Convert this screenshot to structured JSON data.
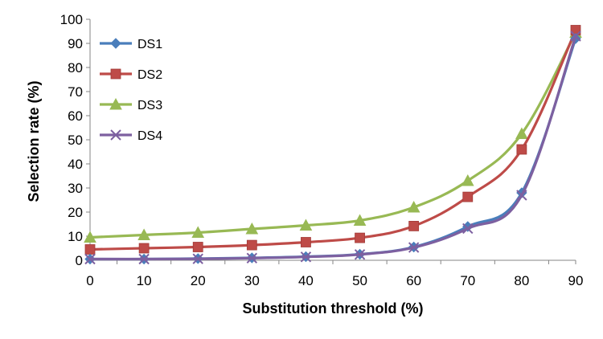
{
  "chart_data": {
    "type": "line",
    "title": "",
    "xlabel": "Substitution threshold (%)",
    "ylabel": "Selection rate (%)",
    "x": [
      0,
      10,
      20,
      30,
      40,
      50,
      60,
      70,
      80,
      90
    ],
    "xlim": [
      0,
      90
    ],
    "ylim": [
      0,
      100
    ],
    "x_ticks": [
      0,
      10,
      20,
      30,
      40,
      50,
      60,
      70,
      80,
      90
    ],
    "y_ticks": [
      0,
      10,
      20,
      30,
      40,
      50,
      60,
      70,
      80,
      90,
      100
    ],
    "grid": false,
    "legend_position": "top-left",
    "series": [
      {
        "name": "DS1",
        "color": "#4a7ebb",
        "marker": "diamond",
        "values": [
          0.5,
          0.5,
          0.7,
          1.0,
          1.5,
          2.5,
          5.5,
          14,
          28,
          92
        ]
      },
      {
        "name": "DS2",
        "color": "#be4b48",
        "marker": "square",
        "values": [
          4.5,
          5.0,
          5.5,
          6.3,
          7.5,
          9.3,
          14.2,
          26.3,
          46,
          95.5
        ]
      },
      {
        "name": "DS3",
        "color": "#98b954",
        "marker": "triangle",
        "values": [
          9.5,
          10.5,
          11.5,
          13,
          14.5,
          16.5,
          22,
          33,
          52.5,
          94.5
        ]
      },
      {
        "name": "DS4",
        "color": "#7d60a0",
        "marker": "x",
        "values": [
          0.5,
          0.5,
          0.6,
          0.9,
          1.4,
          2.4,
          5.3,
          13.2,
          27,
          93
        ]
      }
    ]
  }
}
